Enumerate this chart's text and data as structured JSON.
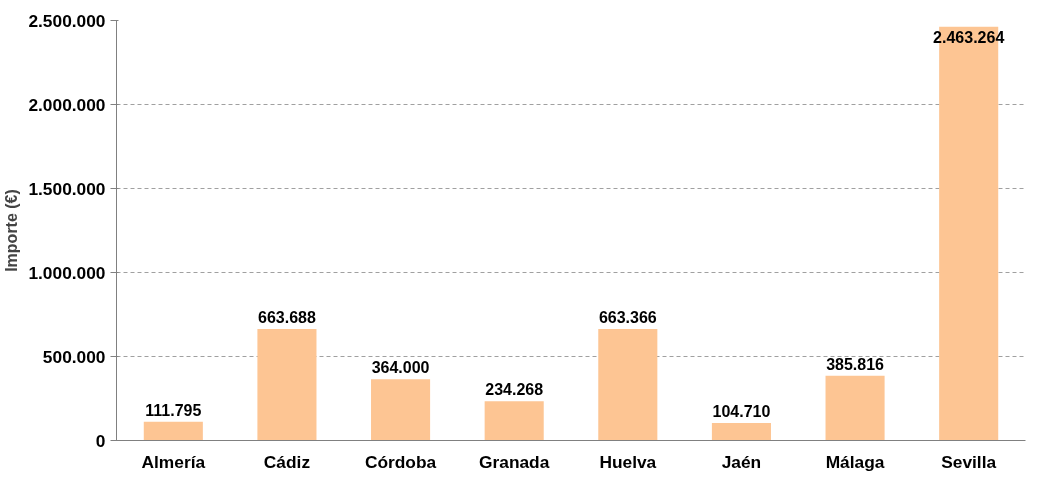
{
  "chart_data": {
    "type": "bar",
    "ylabel": "Importe (€)",
    "categories": [
      "Almería",
      "Cádiz",
      "Córdoba",
      "Granada",
      "Huelva",
      "Jaén",
      "Málaga",
      "Sevilla"
    ],
    "values": [
      111795,
      663688,
      364000,
      234268,
      663366,
      104710,
      385816,
      2463264
    ],
    "color": "#fdc593",
    "ylim": [
      0,
      2500000
    ],
    "yticks": [
      {
        "value": 0,
        "label": "0"
      },
      {
        "value": 500000,
        "label": "500.000"
      },
      {
        "value": 1000000,
        "label": "1.000.000"
      },
      {
        "value": 1500000,
        "label": "1.500.000"
      },
      {
        "value": 2000000,
        "label": "2.000.000"
      },
      {
        "value": 2500000,
        "label": "2.500.000"
      }
    ],
    "value_labels": [
      "111.795",
      "663.688",
      "364.000",
      "234.268",
      "663.366",
      "104.710",
      "385.816",
      "2.463.264"
    ],
    "grid": "y"
  }
}
